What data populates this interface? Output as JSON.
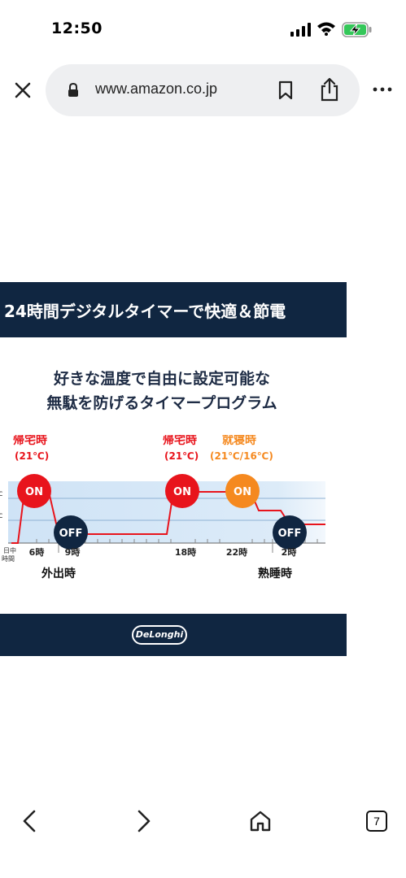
{
  "status_bar": {
    "time": "12:50"
  },
  "browser": {
    "url": "www.amazon.co.jp",
    "tab_count": "7"
  },
  "product_image": {
    "header": "24時間デジタルタイマーで快適＆節電",
    "subtitle_line1": "好きな温度で自由に設定可能な",
    "subtitle_line2": "無駄を防げるタイマープログラム",
    "logo": "DeLonghi"
  },
  "chart_data": {
    "type": "line",
    "xlabel": "日中時間",
    "tick_labels": [
      "6時",
      "9時",
      "18時",
      "22時",
      "2時"
    ],
    "steps": [
      {
        "time": "6時",
        "state": "ON"
      },
      {
        "time": "9時",
        "state": "OFF"
      },
      {
        "time": "18時",
        "state": "ON"
      },
      {
        "time": "22時",
        "state": "ON"
      },
      {
        "time": "2時",
        "state": "OFF"
      }
    ],
    "annotations": {
      "kitaku1_label": "帰宅時",
      "kitaku1_temp": "(21℃)",
      "kitaku2_label": "帰宅時",
      "kitaku2_temp": "(21℃)",
      "shushin_label": "就寝時",
      "shushin_temp": "(21℃/16℃)",
      "gaishutsu": "外出時",
      "jukusui": "熟睡時",
      "on": "ON",
      "off": "OFF"
    },
    "colors": {
      "red": "#e8141c",
      "orange": "#f5891f",
      "navy": "#102641",
      "band": "#d6e7f7"
    }
  }
}
